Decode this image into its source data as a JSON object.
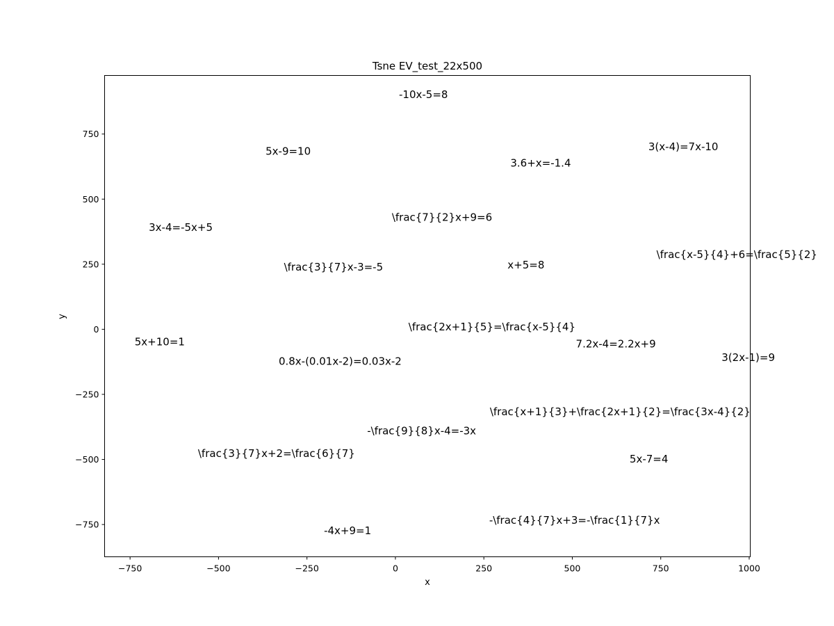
{
  "chart_data": {
    "type": "scatter",
    "title": "Tsne EV_test_22x500",
    "xlabel": "x",
    "ylabel": "y",
    "xlim": [
      -822,
      1003
    ],
    "ylim": [
      -874,
      975
    ],
    "xticks": [
      -750,
      -500,
      -250,
      0,
      250,
      500,
      750,
      1000
    ],
    "yticks": [
      -750,
      -500,
      -250,
      0,
      250,
      500,
      750
    ],
    "xtick_labels": [
      "−750",
      "−500",
      "−250",
      "0",
      "250",
      "500",
      "750",
      "1000"
    ],
    "ytick_labels": [
      "−750",
      "−500",
      "−250",
      "0",
      "250",
      "500",
      "750"
    ],
    "grid": false,
    "points": [
      {
        "label": "-10x-5=8",
        "x": 10,
        "y": 900
      },
      {
        "label": "5x-9=10",
        "x": -367,
        "y": 682
      },
      {
        "label": "3(x-4)=7x-10",
        "x": 715,
        "y": 700
      },
      {
        "label": "3.6+x=-1.4",
        "x": 325,
        "y": 637
      },
      {
        "label": "\\frac{7}{2}x+9=6",
        "x": -10,
        "y": 428
      },
      {
        "label": "3x-4=-5x+5",
        "x": -697,
        "y": 390
      },
      {
        "label": "\\frac{x-5}{4}+6=\\frac{5}{2}",
        "x": 738,
        "y": 285
      },
      {
        "label": "\\frac{3}{7}x-3=-5",
        "x": -315,
        "y": 237
      },
      {
        "label": "x+5=8",
        "x": 317,
        "y": 245
      },
      {
        "label": "\\frac{2x+1}{5}=\\frac{x-5}{4}",
        "x": 37,
        "y": 8
      },
      {
        "label": "5x+10=1",
        "x": -737,
        "y": -50
      },
      {
        "label": "7.2x-4=2.2x+9",
        "x": 510,
        "y": -58
      },
      {
        "label": "3(2x-1)=9",
        "x": 922,
        "y": -110
      },
      {
        "label": "0.8x-(0.01x-2)=0.03x-2",
        "x": -330,
        "y": -125
      },
      {
        "label": "\\frac{x+1}{3}+\\frac{2x+1}{2}=\\frac{3x-4}{2}",
        "x": 267,
        "y": -318
      },
      {
        "label": "-\\frac{9}{8}x-4=-3x",
        "x": -80,
        "y": -392
      },
      {
        "label": "\\frac{3}{7}x+2=\\frac{6}{7}",
        "x": -558,
        "y": -478
      },
      {
        "label": "5x-7=4",
        "x": 662,
        "y": -500
      },
      {
        "label": "-\\frac{4}{7}x+3=-\\frac{1}{7}x",
        "x": 265,
        "y": -735
      },
      {
        "label": "-4x+9=1",
        "x": -202,
        "y": -775
      }
    ]
  }
}
